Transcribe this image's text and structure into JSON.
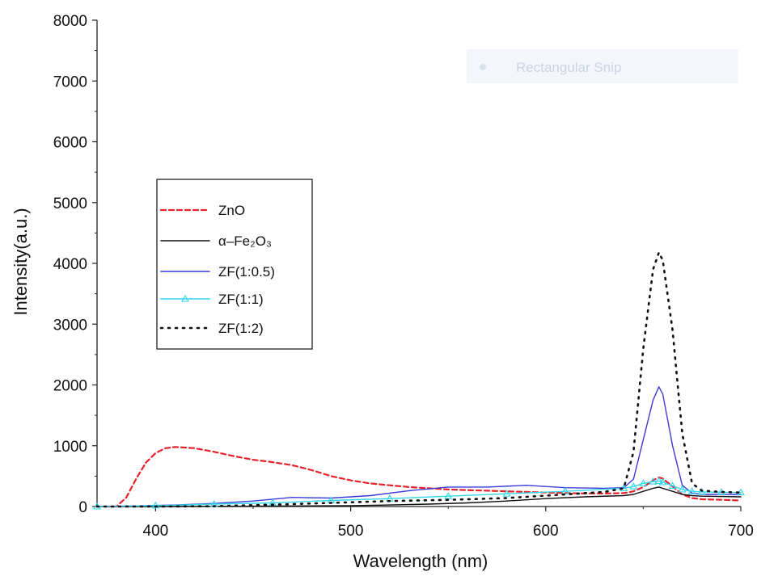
{
  "chart_data": {
    "type": "line",
    "title": "",
    "xlabel": "Wavelength (nm)",
    "ylabel": "Intensity(a.u.)",
    "xlim": [
      370,
      700
    ],
    "ylim": [
      0,
      8000
    ],
    "xticks": [
      400,
      500,
      600,
      700
    ],
    "yticks": [
      0,
      1000,
      2000,
      3000,
      4000,
      5000,
      6000,
      7000,
      8000
    ],
    "grid": false,
    "legend_position": "left-middle",
    "series": [
      {
        "name": "ZnO",
        "color": "#e8202a",
        "style": "dashed",
        "marker": "none",
        "x": [
          370,
          375,
          380,
          385,
          390,
          395,
          400,
          405,
          410,
          420,
          430,
          440,
          450,
          460,
          470,
          480,
          490,
          500,
          510,
          520,
          530,
          540,
          550,
          560,
          570,
          580,
          590,
          600,
          610,
          620,
          630,
          640,
          645,
          650,
          655,
          658,
          660,
          665,
          670,
          675,
          680,
          690,
          700
        ],
        "y": [
          0,
          0,
          0,
          150,
          450,
          720,
          880,
          960,
          980,
          960,
          900,
          830,
          770,
          730,
          680,
          600,
          500,
          430,
          380,
          350,
          320,
          300,
          280,
          270,
          260,
          250,
          240,
          230,
          220,
          215,
          215,
          220,
          250,
          320,
          430,
          480,
          460,
          330,
          200,
          140,
          120,
          110,
          100
        ]
      },
      {
        "name": "α–Fe₂O₃",
        "color": "#111111",
        "style": "solid",
        "marker": "none",
        "x": [
          370,
          400,
          450,
          500,
          520,
          540,
          560,
          580,
          600,
          620,
          640,
          645,
          650,
          655,
          658,
          660,
          665,
          670,
          675,
          680,
          690,
          700
        ],
        "y": [
          0,
          0,
          5,
          15,
          25,
          40,
          60,
          90,
          130,
          160,
          180,
          200,
          250,
          300,
          320,
          300,
          250,
          200,
          180,
          170,
          165,
          160
        ]
      },
      {
        "name": "ZF(1:0.5)",
        "color": "#3b3bd8",
        "style": "solid",
        "marker": "none",
        "x": [
          370,
          390,
          410,
          430,
          450,
          470,
          490,
          510,
          530,
          550,
          570,
          590,
          610,
          630,
          640,
          645,
          650,
          655,
          658,
          660,
          665,
          670,
          675,
          680,
          690,
          700
        ],
        "y": [
          0,
          10,
          25,
          50,
          90,
          150,
          140,
          180,
          260,
          320,
          320,
          350,
          310,
          300,
          310,
          450,
          1100,
          1750,
          1970,
          1850,
          1000,
          350,
          220,
          200,
          200,
          200
        ]
      },
      {
        "name": "ZF(1:1)",
        "color": "#33d6e8",
        "style": "solid",
        "marker": "triangle",
        "x": [
          370,
          400,
          430,
          460,
          490,
          520,
          550,
          580,
          610,
          640,
          645,
          650,
          655,
          658,
          660,
          665,
          670,
          675,
          680,
          690,
          700
        ],
        "y": [
          0,
          15,
          40,
          60,
          100,
          130,
          170,
          210,
          250,
          300,
          330,
          380,
          410,
          420,
          400,
          340,
          280,
          250,
          240,
          235,
          230
        ]
      },
      {
        "name": "ZF(1:2)",
        "color": "#111111",
        "style": "dotted",
        "marker": "none",
        "x": [
          370,
          400,
          430,
          460,
          490,
          520,
          550,
          580,
          610,
          630,
          640,
          645,
          650,
          655,
          658,
          660,
          665,
          670,
          675,
          680,
          690,
          700
        ],
        "y": [
          0,
          0,
          5,
          30,
          60,
          90,
          110,
          140,
          200,
          240,
          300,
          900,
          2600,
          3900,
          4180,
          4050,
          2900,
          1200,
          380,
          260,
          240,
          230
        ]
      }
    ]
  },
  "overlay": {
    "text": "Rectangular Snip"
  }
}
